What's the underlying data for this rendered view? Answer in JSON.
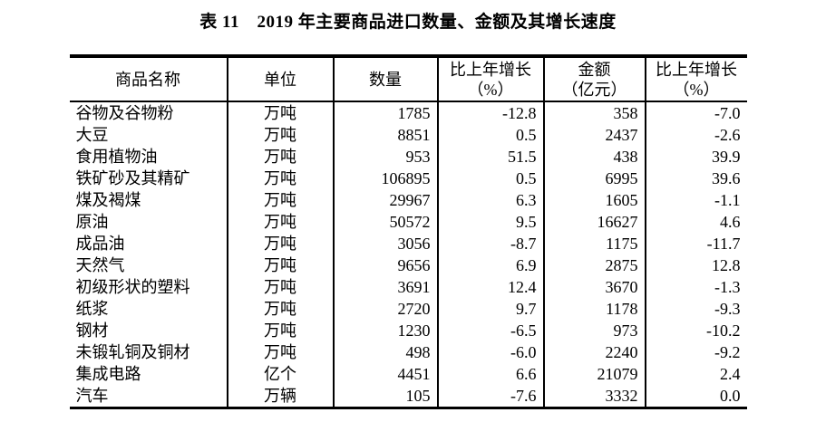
{
  "title": "表 11　2019 年主要商品进口数量、金额及其增长速度",
  "colors": {
    "text": "#000000",
    "background": "#ffffff",
    "border": "#000000"
  },
  "table": {
    "columns": [
      {
        "label": "商品名称"
      },
      {
        "label": "单位"
      },
      {
        "label": "数量"
      },
      {
        "label": "比上年增长",
        "sublabel": "（%）"
      },
      {
        "label": "金额",
        "sublabel": "（亿元）"
      },
      {
        "label": "比上年增长",
        "sublabel": "（%）"
      }
    ],
    "rows": [
      [
        "谷物及谷物粉",
        "万吨",
        "1785",
        "-12.8",
        "358",
        "-7.0"
      ],
      [
        "大豆",
        "万吨",
        "8851",
        "0.5",
        "2437",
        "-2.6"
      ],
      [
        "食用植物油",
        "万吨",
        "953",
        "51.5",
        "438",
        "39.9"
      ],
      [
        "铁矿砂及其精矿",
        "万吨",
        "106895",
        "0.5",
        "6995",
        "39.6"
      ],
      [
        "煤及褐煤",
        "万吨",
        "29967",
        "6.3",
        "1605",
        "-1.1"
      ],
      [
        "原油",
        "万吨",
        "50572",
        "9.5",
        "16627",
        "4.6"
      ],
      [
        "成品油",
        "万吨",
        "3056",
        "-8.7",
        "1175",
        "-11.7"
      ],
      [
        "天然气",
        "万吨",
        "9656",
        "6.9",
        "2875",
        "12.8"
      ],
      [
        "初级形状的塑料",
        "万吨",
        "3691",
        "12.4",
        "3670",
        "-1.3"
      ],
      [
        "纸浆",
        "万吨",
        "2720",
        "9.7",
        "1178",
        "-9.3"
      ],
      [
        "钢材",
        "万吨",
        "1230",
        "-6.5",
        "973",
        "-10.2"
      ],
      [
        "未锻轧铜及铜材",
        "万吨",
        "498",
        "-6.0",
        "2240",
        "-9.2"
      ],
      [
        "集成电路",
        "亿个",
        "4451",
        "6.6",
        "21079",
        "2.4"
      ],
      [
        "汽车",
        "万辆",
        "105",
        "-7.6",
        "3332",
        "0.0"
      ]
    ]
  }
}
